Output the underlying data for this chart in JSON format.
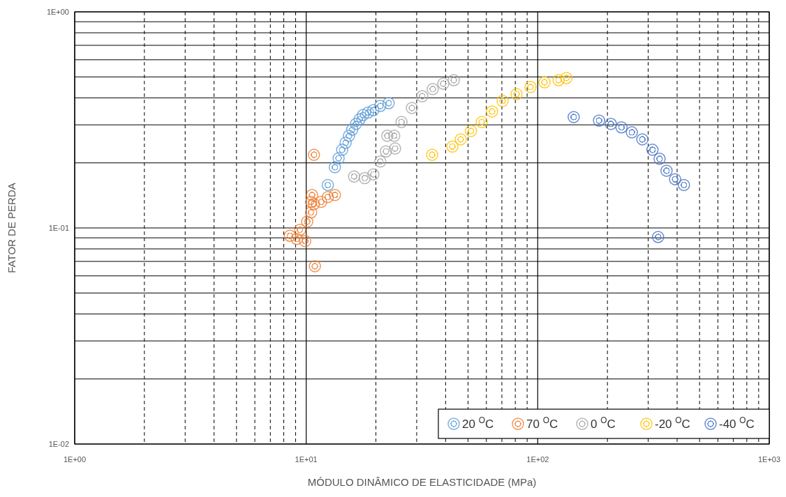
{
  "chart_data": {
    "type": "scatter",
    "xlabel": "MÓDULO DINÂMICO DE ELASTICIDADE (MPa)",
    "ylabel": "FATOR DE PERDA",
    "log": "xy",
    "grid": true,
    "legend": "bottom right",
    "marker": "circle",
    "xlim": [
      1,
      1000
    ],
    "ylim": [
      0.01,
      1
    ],
    "xticks": [
      {
        "value": 1,
        "label": "1E+00"
      },
      {
        "value": 10,
        "label": "1E+01"
      },
      {
        "value": 100,
        "label": "1E+02"
      },
      {
        "value": 1000,
        "label": "1E+03"
      }
    ],
    "yticks": [
      {
        "value": 0.01,
        "label": "1E-02"
      },
      {
        "value": 0.1,
        "label": "1E-01"
      },
      {
        "value": 1,
        "label": "1E+00"
      }
    ],
    "series": [
      {
        "name": "20 $^{O}$C",
        "color": "#5b9bd5",
        "x": [
          12.4,
          13.3,
          13.8,
          14.3,
          14.8,
          15.3,
          15.8,
          16.4,
          17,
          17.6,
          18.5,
          19.5,
          20.9,
          22.7
        ],
        "values": [
          0.158,
          0.191,
          0.21,
          0.23,
          0.248,
          0.267,
          0.285,
          0.303,
          0.318,
          0.333,
          0.342,
          0.351,
          0.367,
          0.378
        ]
      },
      {
        "name": "70 $^{O}$C",
        "color": "#ed7d31",
        "x": [
          8.5,
          9.1,
          9.4,
          9.9,
          10.1,
          10.5,
          10.6,
          10.8,
          11.6,
          12.4,
          13.3,
          10.5,
          10.8,
          10.9
        ],
        "values": [
          0.092,
          0.089,
          0.098,
          0.087,
          0.107,
          0.118,
          0.142,
          0.129,
          0.132,
          0.139,
          0.142,
          0.132,
          0.218,
          0.0665
        ]
      },
      {
        "name": "0 $^{O}$C",
        "color": "#a5a5a5",
        "x": [
          16.1,
          17.9,
          19.5,
          20.9,
          22.1,
          22.4,
          24.2,
          24,
          25.8,
          28.6,
          31.7,
          35.2,
          39.1,
          43.4
        ],
        "values": [
          0.173,
          0.17,
          0.177,
          0.203,
          0.226,
          0.267,
          0.233,
          0.267,
          0.309,
          0.359,
          0.407,
          0.439,
          0.465,
          0.483
        ]
      },
      {
        "name": "-20 $^{O}$C",
        "color": "#ffc000",
        "x": [
          35,
          42.8,
          46.5,
          51.5,
          57.3,
          63.5,
          70.5,
          81,
          93,
          107,
          123,
          133
        ],
        "values": [
          0.218,
          0.238,
          0.257,
          0.281,
          0.309,
          0.346,
          0.387,
          0.416,
          0.449,
          0.472,
          0.483,
          0.494
        ]
      },
      {
        "name": "-40 $^{O}$C",
        "color": "#4472c4",
        "x": [
          143,
          184,
          207,
          230,
          255,
          283,
          313,
          336,
          360,
          392,
          428,
          331
        ],
        "values": [
          0.326,
          0.314,
          0.303,
          0.292,
          0.277,
          0.257,
          0.23,
          0.209,
          0.184,
          0.168,
          0.158,
          0.0908
        ]
      }
    ]
  }
}
